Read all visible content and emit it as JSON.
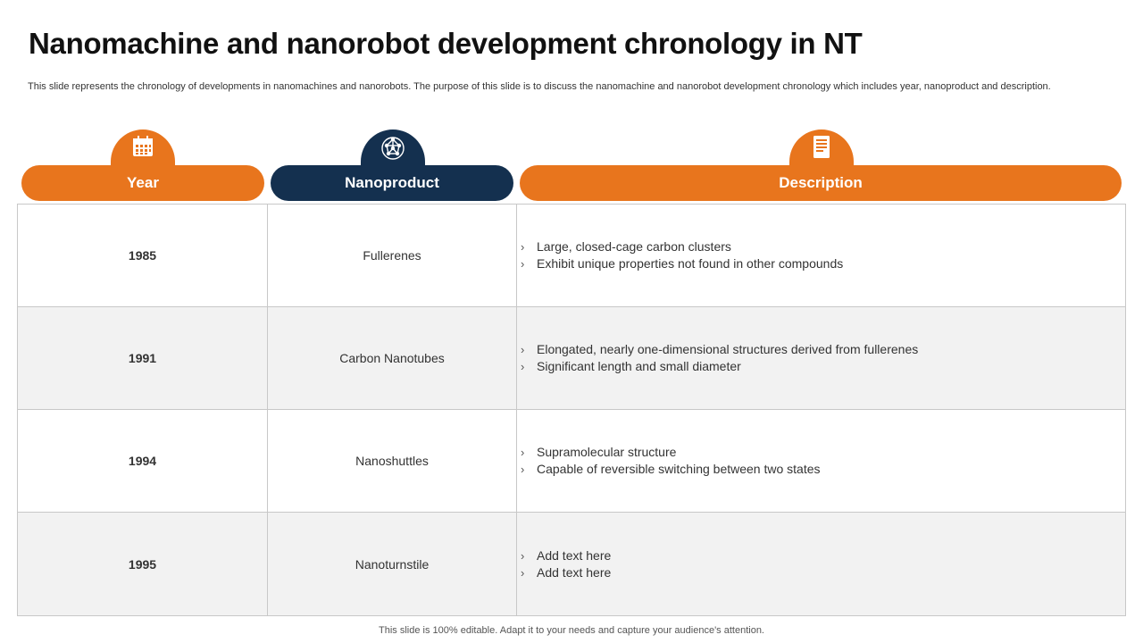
{
  "title": "Nanomachine and nanorobot development chronology in NT",
  "subtitle": "This slide represents the chronology of developments in nanomachines and nanorobots. The purpose of this slide is to discuss the nanomachine and nanorobot development chronology which includes year, nanoproduct and description.",
  "headers": {
    "year": "Year",
    "nanoproduct": "Nanoproduct",
    "description": "Description"
  },
  "icons": {
    "year": "calendar-icon",
    "nanoproduct": "molecule-network-icon",
    "description": "document-icon"
  },
  "rows": [
    {
      "year": "1985",
      "product": "Fullerenes",
      "bullets": [
        "Large, closed-cage carbon clusters",
        "Exhibit unique properties not found in other compounds"
      ]
    },
    {
      "year": "1991",
      "product": "Carbon Nanotubes",
      "bullets": [
        "Elongated, nearly one-dimensional structures derived from fullerenes",
        "Significant length and small diameter"
      ]
    },
    {
      "year": "1994",
      "product": "Nanoshuttles",
      "bullets": [
        "Supramolecular structure",
        "Capable of reversible switching between two states"
      ]
    },
    {
      "year": "1995",
      "product": "Nanoturnstile",
      "bullets": [
        "Add text here",
        "Add text here"
      ]
    }
  ],
  "bullet_glyph": "›",
  "footer": "This slide is 100% editable. Adapt it to your needs and capture your audience's attention.",
  "colors": {
    "orange": "#e8751d",
    "navy": "#14304f"
  }
}
